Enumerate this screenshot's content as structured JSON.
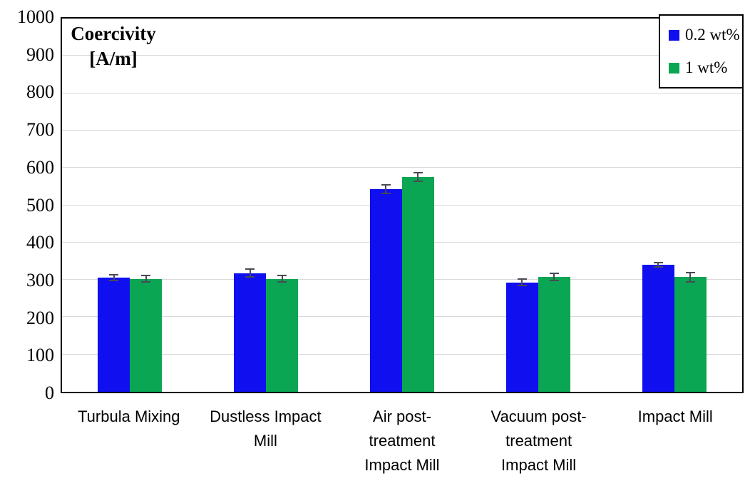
{
  "chart_data": {
    "type": "bar",
    "title_lines": [
      "Coercivity",
      "[A/m]"
    ],
    "title": "Coercivity [A/m]",
    "xlabel": "",
    "ylabel": "Coercivity [A/m]",
    "ylim": [
      0,
      1000
    ],
    "ytick_step": 100,
    "grid": true,
    "legend_position": "top-right",
    "categories": [
      "Turbula Mixing",
      "Dustless Impact Mill",
      "Air post-treatment Impact Mill",
      "Vacuum post-treatment Impact Mill",
      "Impact Mill"
    ],
    "category_lines": [
      [
        "Turbula Mixing"
      ],
      [
        "Dustless Impact",
        "Mill"
      ],
      [
        "Air post-",
        "treatment",
        "Impact Mill"
      ],
      [
        "Vacuum post-",
        "treatment",
        "Impact Mill"
      ],
      [
        "Impact Mill"
      ]
    ],
    "series": [
      {
        "name": "0.2 wt%",
        "color": "#0f0ff0",
        "values": [
          306,
          318,
          543,
          293,
          341
        ],
        "errors": [
          8,
          11,
          12,
          9,
          6
        ]
      },
      {
        "name": "1 wt%",
        "color": "#0aa653",
        "values": [
          303,
          303,
          576,
          308,
          307
        ],
        "errors": [
          8,
          8,
          11,
          9,
          12
        ]
      }
    ],
    "colors": {
      "error_bar": "#4a4a55",
      "gridline": "#d9d9d9",
      "axis": "#000000",
      "background": "#ffffff"
    }
  }
}
